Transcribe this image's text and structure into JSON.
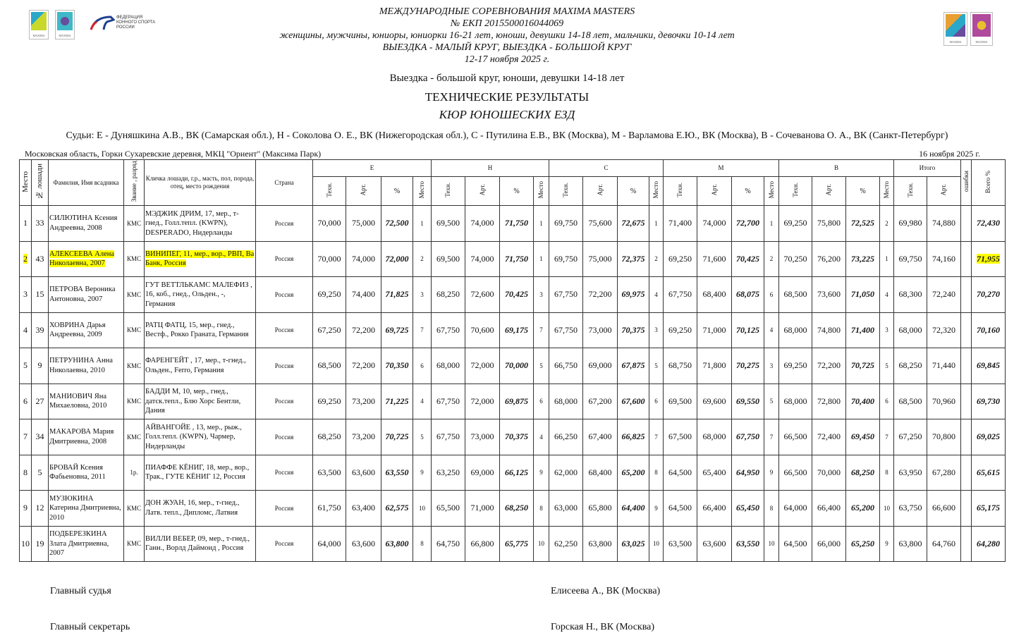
{
  "logos": {
    "left": [
      "MAXIMA",
      "MAXIMA"
    ],
    "federation": "ФЕДЕРАЦИЯ КОННОГО СПОРТА РОССИИ",
    "right": [
      "MAXIMA",
      "MAXIMA"
    ],
    "accent_colors": {
      "highlight": "#ffff00",
      "logo_green": "#b8cf2a",
      "logo_purple": "#6a4c9c",
      "logo_orange": "#e8a030"
    }
  },
  "header": {
    "line1": "МЕЖДУНАРОДНЫЕ СОРЕВНОВАНИЯ MAXIMA MASTERS",
    "line2": "№ ЕКП 2015500016044069",
    "line3": "женщины, мужчины, юниоры, юниорки 16-21 лет, юноши, девушки 14-18 лет, мальчики, девочки 10-14 лет",
    "line4": "ВЫЕЗДКА - МАЛЫЙ КРУГ, ВЫЕЗДКА - БОЛЬШОЙ КРУГ",
    "line5": "12-17 ноября 2025 г.",
    "category": "Выездка - большой круг, юноши, девушки 14-18 лет",
    "title": "ТЕХНИЧЕСКИЕ РЕЗУЛЬТАТЫ",
    "subtitle": "КЮР ЮНОШЕСКИХ ЕЗД",
    "judges": "Судьи:  Е - Дуняшкина А.В., ВК (Самарская обл.), Н - Соколова О. Е., ВК (Нижегородская обл.), С - Путилина Е.В., ВК (Москва), М - Варламова Е.Ю., ВК (Москва), В - Сочеванова О. А., ВК (Санкт-Петербург)",
    "location": "Московская область, Горки Сухаревские деревня,  МКЦ \"Ориент\" (Максима Парк)",
    "date": "16 ноября 2025 г."
  },
  "table": {
    "headers": {
      "place": "Место",
      "horse_no": "№ лошади",
      "rider": "Фамилия, Имя всадника",
      "rank": "Звание , разряд",
      "horse": "Кличка лошади, г.р., масть, пол, порода, отец, место рождения",
      "country": "Страна",
      "judges": [
        "Е",
        "Н",
        "С",
        "М",
        "В"
      ],
      "total": "Итого",
      "tech": "Техн.",
      "art": "Арт.",
      "pct": "%",
      "jplace": "Место",
      "errors": "ошибки",
      "overall": "Всего %"
    },
    "rows": [
      {
        "place": "1",
        "no": "33",
        "rider": "СИЛЮТИНА Ксения Андреевна, 2008",
        "rank": "КМС",
        "horse": "МЭДЖИК ДРИМ, 17, мер., т-гнед., Голл.тепл. (KWPN), DESPERADO, Нидерланды",
        "country": "Россия",
        "j": [
          [
            "70,000",
            "75,000",
            "72,500",
            "1"
          ],
          [
            "69,500",
            "74,000",
            "71,750",
            "1"
          ],
          [
            "69,750",
            "75,600",
            "72,675",
            "1"
          ],
          [
            "71,400",
            "74,000",
            "72,700",
            "1"
          ],
          [
            "69,250",
            "75,800",
            "72,525",
            "2"
          ]
        ],
        "tot_tech": "69,980",
        "tot_art": "74,880",
        "errors": "",
        "total": "72,430",
        "highlight": false
      },
      {
        "place": "2",
        "no": "43",
        "rider": "АЛЕКСЕЕВА Алена Николаевна, 2007",
        "rank": "КМС",
        "horse": "ВИНИПЕГ, 11, мер., вор., РВП, Ва Банк, Россия",
        "country": "Россия",
        "j": [
          [
            "70,000",
            "74,000",
            "72,000",
            "2"
          ],
          [
            "69,500",
            "74,000",
            "71,750",
            "1"
          ],
          [
            "69,750",
            "75,000",
            "72,375",
            "2"
          ],
          [
            "69,250",
            "71,600",
            "70,425",
            "2"
          ],
          [
            "70,250",
            "76,200",
            "73,225",
            "1"
          ]
        ],
        "tot_tech": "69,750",
        "tot_art": "74,160",
        "errors": "",
        "total": "71,955",
        "highlight": true
      },
      {
        "place": "3",
        "no": "15",
        "rider": "ПЕТРОВА Вероника Антоновна, 2007",
        "rank": "КМС",
        "horse": "ГУТ ВЕТТЛЬКАМС МАЛЕФИЗ , 16, коб., гнед., Ольден., -, Германия",
        "country": "Россия",
        "j": [
          [
            "69,250",
            "74,400",
            "71,825",
            "3"
          ],
          [
            "68,250",
            "72,600",
            "70,425",
            "3"
          ],
          [
            "67,750",
            "72,200",
            "69,975",
            "4"
          ],
          [
            "67,750",
            "68,400",
            "68,075",
            "6"
          ],
          [
            "68,500",
            "73,600",
            "71,050",
            "4"
          ]
        ],
        "tot_tech": "68,300",
        "tot_art": "72,240",
        "errors": "",
        "total": "70,270",
        "highlight": false
      },
      {
        "place": "4",
        "no": "39",
        "rider": "ХОВРИНА Дарья Андреевна, 2009",
        "rank": "КМС",
        "horse": "РАТЦ ФАТЦ, 15, мер., гнед., Вестф., Рокко Граната, Германия",
        "country": "Россия",
        "j": [
          [
            "67,250",
            "72,200",
            "69,725",
            "7"
          ],
          [
            "67,750",
            "70,600",
            "69,175",
            "7"
          ],
          [
            "67,750",
            "73,000",
            "70,375",
            "3"
          ],
          [
            "69,250",
            "71,000",
            "70,125",
            "4"
          ],
          [
            "68,000",
            "74,800",
            "71,400",
            "3"
          ]
        ],
        "tot_tech": "68,000",
        "tot_art": "72,320",
        "errors": "",
        "total": "70,160",
        "highlight": false
      },
      {
        "place": "5",
        "no": "9",
        "rider": "ПЕТРУНИНА Анна Николаевна, 2010",
        "rank": "КМС",
        "horse": "ФАРЕНГЕЙТ , 17, мер., т-гнед., Ольден., Ferro, Германия",
        "country": "Россия",
        "j": [
          [
            "68,500",
            "72,200",
            "70,350",
            "6"
          ],
          [
            "68,000",
            "72,000",
            "70,000",
            "5"
          ],
          [
            "66,750",
            "69,000",
            "67,875",
            "5"
          ],
          [
            "68,750",
            "71,800",
            "70,275",
            "3"
          ],
          [
            "69,250",
            "72,200",
            "70,725",
            "5"
          ]
        ],
        "tot_tech": "68,250",
        "tot_art": "71,440",
        "errors": "",
        "total": "69,845",
        "highlight": false
      },
      {
        "place": "6",
        "no": "27",
        "rider": "МАНИОВИЧ Яна Михаеловна, 2010",
        "rank": "КМС",
        "horse": "БАДДИ М, 10, мер., гнед., датск.тепл., Блю Хорс Бентли, Дания",
        "country": "Россия",
        "j": [
          [
            "69,250",
            "73,200",
            "71,225",
            "4"
          ],
          [
            "67,750",
            "72,000",
            "69,875",
            "6"
          ],
          [
            "68,000",
            "67,200",
            "67,600",
            "6"
          ],
          [
            "69,500",
            "69,600",
            "69,550",
            "5"
          ],
          [
            "68,000",
            "72,800",
            "70,400",
            "6"
          ]
        ],
        "tot_tech": "68,500",
        "tot_art": "70,960",
        "errors": "",
        "total": "69,730",
        "highlight": false
      },
      {
        "place": "7",
        "no": "34",
        "rider": "МАКАРОВА Мария Дмитриевна, 2008",
        "rank": "КМС",
        "horse": "АЙВАНГОЙЕ , 13, мер., рыж., Голл.тепл. (KWPN), Чармер, Нидерланды",
        "country": "Россия",
        "j": [
          [
            "68,250",
            "73,200",
            "70,725",
            "5"
          ],
          [
            "67,750",
            "73,000",
            "70,375",
            "4"
          ],
          [
            "66,250",
            "67,400",
            "66,825",
            "7"
          ],
          [
            "67,500",
            "68,000",
            "67,750",
            "7"
          ],
          [
            "66,500",
            "72,400",
            "69,450",
            "7"
          ]
        ],
        "tot_tech": "67,250",
        "tot_art": "70,800",
        "errors": "",
        "total": "69,025",
        "highlight": false
      },
      {
        "place": "8",
        "no": "5",
        "rider": "БРОВАЙ Ксения Фабьеновна, 2011",
        "rank": "1р.",
        "horse": "ПИАФФЕ КЁНИГ, 18, мер., вор., Трак., ГУТЕ КЁНИГ 12, Россия",
        "country": "Россия",
        "j": [
          [
            "63,500",
            "63,600",
            "63,550",
            "9"
          ],
          [
            "63,250",
            "69,000",
            "66,125",
            "9"
          ],
          [
            "62,000",
            "68,400",
            "65,200",
            "8"
          ],
          [
            "64,500",
            "65,400",
            "64,950",
            "9"
          ],
          [
            "66,500",
            "70,000",
            "68,250",
            "8"
          ]
        ],
        "tot_tech": "63,950",
        "tot_art": "67,280",
        "errors": "",
        "total": "65,615",
        "highlight": false
      },
      {
        "place": "9",
        "no": "12",
        "rider": "МУЗЮКИНА Катерина Дмитриевна, 2010",
        "rank": "КМС",
        "horse": "ДОН ЖУАН, 16, мер., т-гнед., Латв. тепл., Дипломс, Латвия",
        "country": "Россия",
        "j": [
          [
            "61,750",
            "63,400",
            "62,575",
            "10"
          ],
          [
            "65,500",
            "71,000",
            "68,250",
            "8"
          ],
          [
            "63,000",
            "65,800",
            "64,400",
            "9"
          ],
          [
            "64,500",
            "66,400",
            "65,450",
            "8"
          ],
          [
            "64,000",
            "66,400",
            "65,200",
            "10"
          ]
        ],
        "tot_tech": "63,750",
        "tot_art": "66,600",
        "errors": "",
        "total": "65,175",
        "highlight": false
      },
      {
        "place": "10",
        "no": "19",
        "rider": "ПОДБЕРЕЗКИНА Злата Дмитриевна, 2007",
        "rank": "КМС",
        "horse": "ВИЛЛИ ВЕБЕР, 09, мер., т-гнед., Ганн., Ворлд Даймонд , Россия",
        "country": "Россия",
        "j": [
          [
            "64,000",
            "63,600",
            "63,800",
            "8"
          ],
          [
            "64,750",
            "66,800",
            "65,775",
            "10"
          ],
          [
            "62,250",
            "63,800",
            "63,025",
            "10"
          ],
          [
            "63,500",
            "63,600",
            "63,550",
            "10"
          ],
          [
            "64,500",
            "66,000",
            "65,250",
            "9"
          ]
        ],
        "tot_tech": "63,800",
        "tot_art": "64,760",
        "errors": "",
        "total": "64,280",
        "highlight": false
      }
    ]
  },
  "footer": {
    "chief_judge_label": "Главный судья",
    "chief_judge": "Елисеева А., ВК (Москва)",
    "chief_secretary_label": "Главный секретарь",
    "chief_secretary": "Горская Н., ВК (Москва)"
  }
}
